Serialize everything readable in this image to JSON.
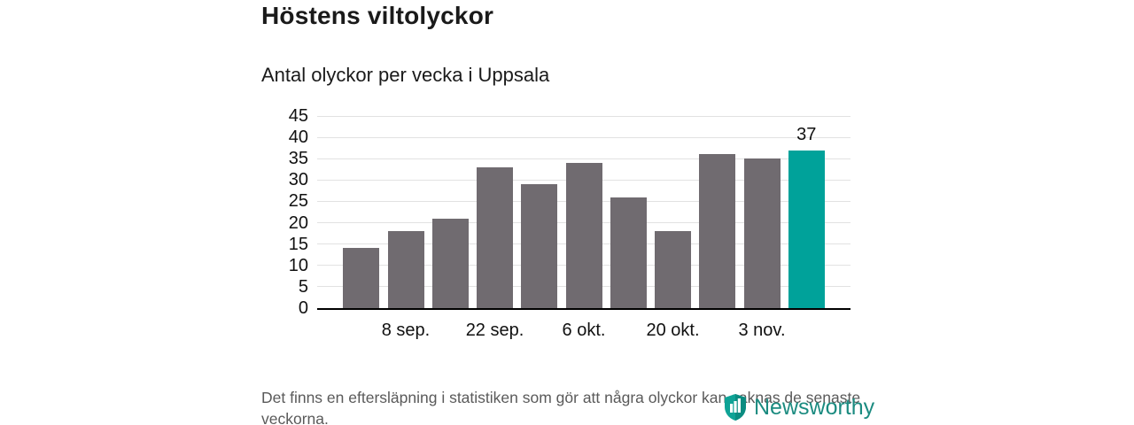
{
  "header": {
    "title": "Höstens viltolyckor",
    "subtitle": "Antal olyckor per vecka i Uppsala"
  },
  "chart_data": {
    "type": "bar",
    "title": "Höstens viltolyckor",
    "subtitle": "Antal olyckor per vecka i Uppsala",
    "values": [
      14,
      18,
      21,
      33,
      29,
      34,
      26,
      18,
      36,
      35,
      37
    ],
    "highlight_index": 10,
    "value_labels": [
      {
        "bar_index": 10,
        "label": "37"
      }
    ],
    "x_ticks": [
      {
        "bar_index": 1,
        "label": "8 sep."
      },
      {
        "bar_index": 3,
        "label": "22 sep."
      },
      {
        "bar_index": 5,
        "label": "6 okt."
      },
      {
        "bar_index": 7,
        "label": "20 okt."
      },
      {
        "bar_index": 9,
        "label": "3 nov."
      }
    ],
    "y_ticks": [
      0,
      5,
      10,
      15,
      20,
      25,
      30,
      35,
      40,
      45
    ],
    "ylim": [
      0,
      45
    ],
    "grid": true,
    "legend": false,
    "colors": {
      "bar": "#706b70",
      "highlight": "#00a29a",
      "grid": "#e2e2e2",
      "axis": "#000000"
    }
  },
  "footer": {
    "note": "Det finns en eftersläpning i statistiken som gör att några olyckor kan saknas de senaste veckorna."
  },
  "logo": {
    "text": "Newsworthy",
    "color": "#1b8b80",
    "icon": "newsworthy-shield-icon"
  }
}
